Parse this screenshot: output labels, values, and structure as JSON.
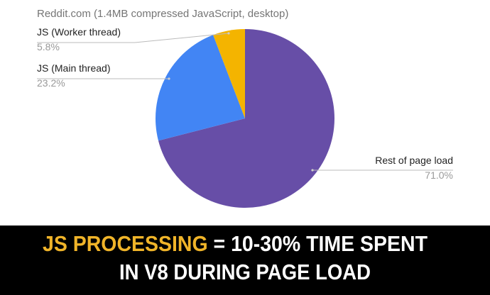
{
  "chart_data": {
    "type": "pie",
    "title": "Reddit.com (1.4MB compressed JavaScript, desktop)",
    "categories": [
      "Rest of page load",
      "JS (Main thread)",
      "JS (Worker thread)"
    ],
    "values": [
      71.0,
      23.2,
      5.8
    ],
    "value_labels": [
      "71.0%",
      "23.2%",
      "5.8%"
    ],
    "colors": [
      "#674ea7",
      "#4285f4",
      "#f4b400"
    ]
  },
  "caption": {
    "highlight": "JS PROCESSING",
    "rest": "= 10-30% TIME SPENT",
    "line2": "IN V8 DURING PAGE LOAD"
  }
}
